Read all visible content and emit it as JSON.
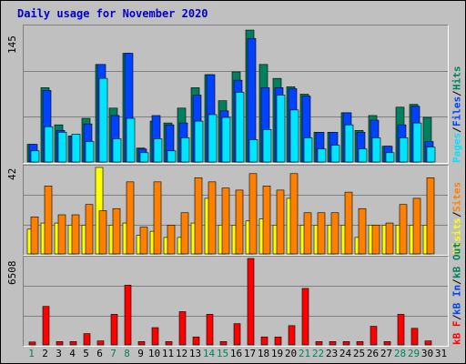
{
  "title": "Daily usage for November 2020",
  "colors": {
    "hits": "#00805c",
    "files": "#0042ff",
    "pages": "#00e4ff",
    "visits": "#ffff00",
    "sites": "#ff8000",
    "kbin": "#ff0000",
    "weekend_label": "#00805c",
    "weekday_label": "#000000",
    "legend_sep": "#000000",
    "background": "#c0c0c0"
  },
  "legends": {
    "top": [
      {
        "text": "Pages",
        "color": "#00e4ff"
      },
      {
        "text": "/",
        "color": "#000000"
      },
      {
        "text": "Files",
        "color": "#0042ff"
      },
      {
        "text": "/",
        "color": "#000000"
      },
      {
        "text": "Hits",
        "color": "#00805c"
      }
    ],
    "middle": [
      {
        "text": "Visits",
        "color": "#ffff00"
      },
      {
        "text": "/",
        "color": "#000000"
      },
      {
        "text": "Sites",
        "color": "#ff8000"
      }
    ],
    "bottom": [
      {
        "text": "kB F",
        "color": "#ff0000"
      },
      {
        "text": "/",
        "color": "#000000"
      },
      {
        "text": "kB In",
        "color": "#0042ff"
      },
      {
        "text": "/",
        "color": "#000000"
      },
      {
        "text": "kB Out",
        "color": "#00805c"
      }
    ]
  },
  "chart_data": [
    {
      "type": "bar",
      "title": "Daily usage for November 2020",
      "ylabel_max": "145",
      "ylim": [
        0,
        145
      ],
      "grid": true,
      "categories": [
        "1",
        "2",
        "3",
        "4",
        "5",
        "6",
        "7",
        "8",
        "9",
        "10",
        "11",
        "12",
        "13",
        "14",
        "15",
        "16",
        "17",
        "18",
        "19",
        "20",
        "21",
        "22",
        "23",
        "24",
        "25",
        "26",
        "27",
        "28",
        "29",
        "30",
        "31"
      ],
      "weekend_days": [
        "1",
        "7",
        "8",
        "14",
        "15",
        "21",
        "22",
        "28",
        "29"
      ],
      "series": [
        {
          "name": "Hits",
          "values": [
            19,
            80,
            40,
            28,
            47,
            105,
            58,
            117,
            15,
            44,
            42,
            58,
            80,
            94,
            66,
            97,
            142,
            105,
            90,
            81,
            73,
            32,
            32,
            53,
            34,
            50,
            17,
            59,
            62,
            48,
            0
          ]
        },
        {
          "name": "Files",
          "values": [
            19,
            77,
            34,
            28,
            41,
            105,
            50,
            117,
            14,
            50,
            40,
            42,
            72,
            94,
            55,
            88,
            133,
            80,
            80,
            79,
            71,
            32,
            32,
            53,
            32,
            45,
            17,
            40,
            60,
            22,
            0
          ]
        },
        {
          "name": "Pages",
          "values": [
            12,
            38,
            32,
            30,
            22,
            90,
            25,
            47,
            10,
            25,
            12,
            26,
            44,
            51,
            48,
            75,
            24,
            35,
            72,
            56,
            26,
            14,
            18,
            40,
            14,
            26,
            10,
            26,
            42,
            16,
            0
          ]
        }
      ]
    },
    {
      "type": "bar",
      "ylabel_max": "42",
      "ylim": [
        0,
        42
      ],
      "grid": true,
      "categories": [
        "1",
        "2",
        "3",
        "4",
        "5",
        "6",
        "7",
        "8",
        "9",
        "10",
        "11",
        "12",
        "13",
        "14",
        "15",
        "16",
        "17",
        "18",
        "19",
        "20",
        "21",
        "22",
        "23",
        "24",
        "25",
        "26",
        "27",
        "28",
        "29",
        "30",
        "31"
      ],
      "series": [
        {
          "name": "Visits",
          "values": [
            12,
            15,
            15,
            14,
            14,
            42,
            14,
            15,
            9,
            11,
            8,
            8,
            15,
            27,
            14,
            14,
            16,
            17,
            14,
            27,
            14,
            14,
            14,
            14,
            8,
            14,
            14,
            14,
            14,
            14,
            0
          ]
        },
        {
          "name": "Sites",
          "values": [
            18,
            33,
            19,
            19,
            24,
            21,
            22,
            35,
            13,
            35,
            14,
            20,
            37,
            35,
            32,
            31,
            39,
            33,
            31,
            39,
            20,
            20,
            20,
            30,
            22,
            14,
            15,
            24,
            27,
            37,
            0
          ]
        }
      ]
    },
    {
      "type": "bar",
      "ylabel_max": "6508",
      "ylim": [
        0,
        6508
      ],
      "grid": true,
      "categories": [
        "1",
        "2",
        "3",
        "4",
        "5",
        "6",
        "7",
        "8",
        "9",
        "10",
        "11",
        "12",
        "13",
        "14",
        "15",
        "16",
        "17",
        "18",
        "19",
        "20",
        "21",
        "22",
        "23",
        "24",
        "25",
        "26",
        "27",
        "28",
        "29",
        "30",
        "31"
      ],
      "series": [
        {
          "name": "kB F",
          "values": [
            220,
            2900,
            250,
            250,
            850,
            300,
            2300,
            4500,
            250,
            1300,
            250,
            2500,
            600,
            2300,
            250,
            1600,
            6508,
            600,
            600,
            1450,
            4250,
            250,
            250,
            250,
            250,
            1400,
            250,
            2300,
            1250,
            300,
            0
          ]
        }
      ]
    }
  ]
}
